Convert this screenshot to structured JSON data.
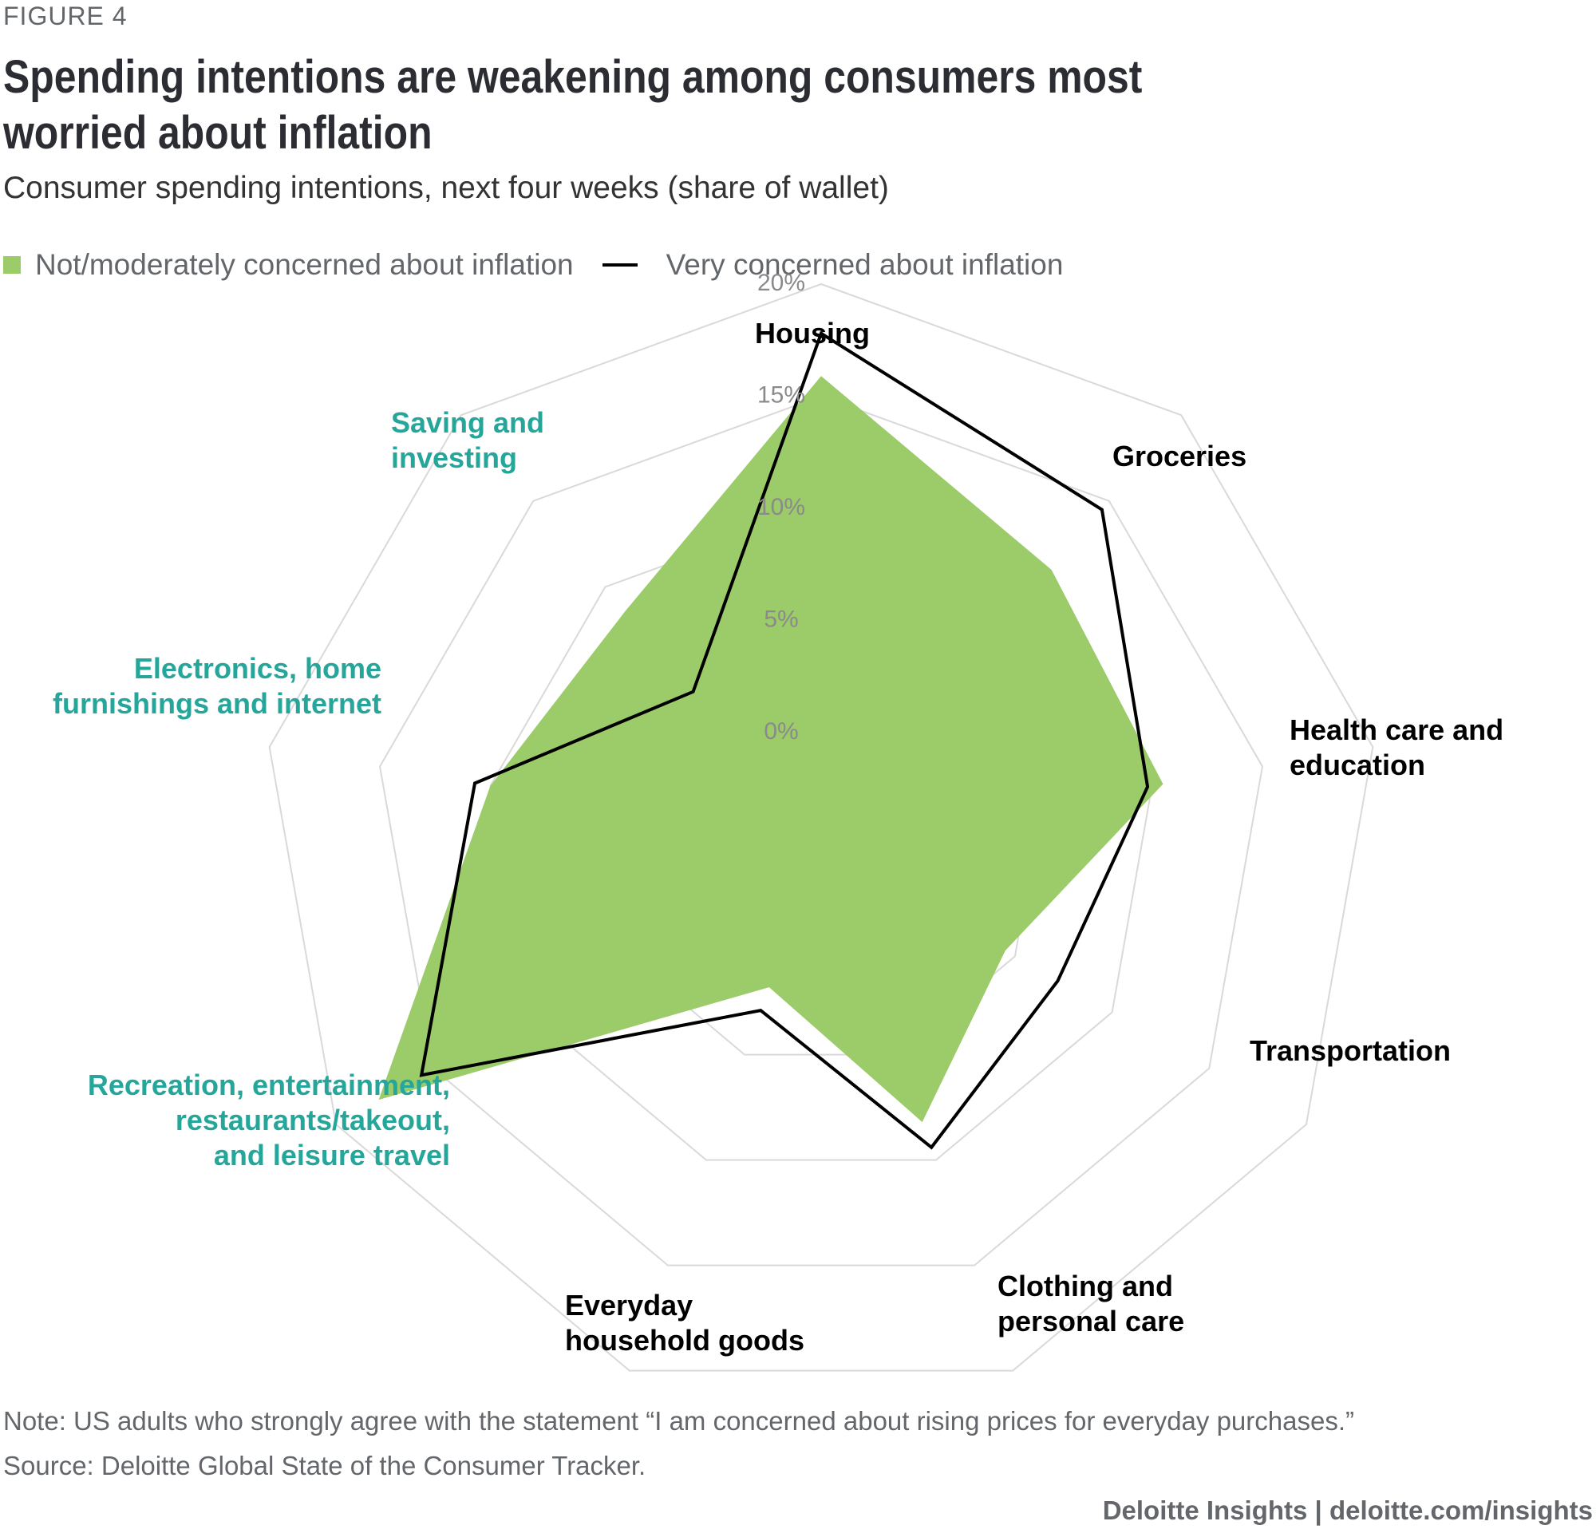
{
  "figure_label": "FIGURE 4",
  "title": "Spending intentions are weakening among consumers most worried about inflation",
  "subtitle": "Consumer spending intentions, next four weeks (share of wallet)",
  "legend": {
    "series_green": "Not/moderately concerned about inflation",
    "series_black": "Very concerned about inflation"
  },
  "colors": {
    "green_fill": "#9ccb6a",
    "black_line": "#000000",
    "grid": "#d9d9d9",
    "tick_text": "#8a8a8a",
    "teal_label": "#26a69a",
    "dark_label": "#000000"
  },
  "chart_data": {
    "type": "radar",
    "title": "Spending intentions are weakening among consumers most worried about inflation",
    "subtitle": "Consumer spending intentions, next four weeks (share of wallet)",
    "axis_range": [
      0,
      20
    ],
    "tick_labels": [
      "0%",
      "5%",
      "10%",
      "15%",
      "20%"
    ],
    "ticks": [
      0,
      5,
      10,
      15,
      20
    ],
    "grid": true,
    "legend_position": "top-left",
    "categories": [
      {
        "label_lines": [
          "Housing"
        ],
        "color": "dark"
      },
      {
        "label_lines": [
          "Groceries"
        ],
        "color": "dark"
      },
      {
        "label_lines": [
          "Health care and",
          "education"
        ],
        "color": "dark"
      },
      {
        "label_lines": [
          "Transportation"
        ],
        "color": "dark"
      },
      {
        "label_lines": [
          "Clothing and",
          "personal care"
        ],
        "color": "dark"
      },
      {
        "label_lines": [
          "Everyday",
          "household goods"
        ],
        "color": "dark"
      },
      {
        "label_lines": [
          "Recreation, entertainment,",
          "restaurants/takeout,",
          "and leisure travel"
        ],
        "color": "teal"
      },
      {
        "label_lines": [
          "Electronics, home",
          "furnishings and internet"
        ],
        "color": "teal"
      },
      {
        "label_lines": [
          "Saving and",
          "investing"
        ],
        "color": "teal"
      }
    ],
    "series": [
      {
        "name": "Not/moderately concerned about inflation",
        "style": "area",
        "values": [
          15.9,
          11.0,
          10.5,
          4.5,
          8.2,
          1.8,
          17.8,
          10.0,
          8.6
        ]
      },
      {
        "name": "Very concerned about inflation",
        "style": "line",
        "values": [
          17.8,
          14.5,
          9.8,
          7.2,
          9.4,
          2.9,
          15.6,
          10.7,
          3.9
        ]
      }
    ]
  },
  "note": "Note: US adults who strongly agree with the statement “I am concerned about rising prices for everyday purchases.”",
  "source": "Source: Deloitte Global State of the Consumer Tracker.",
  "footer": "Deloitte Insights | deloitte.com/insights"
}
